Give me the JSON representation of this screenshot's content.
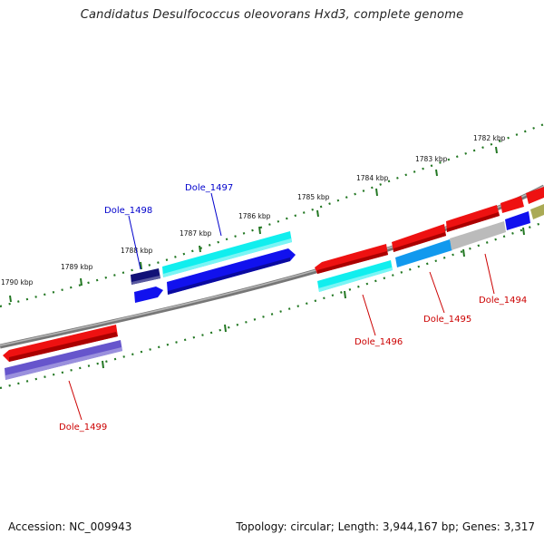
{
  "title": "Candidatus Desulfococcus oleovorans Hxd3, complete genome",
  "accession": "Accession: NC_009943",
  "summary": "Topology: circular; Length: 3,944,167 bp; Genes: 3,317",
  "colors": {
    "forward_gene": "#ee1111",
    "blue_gene": "#1111ee",
    "cyan_gene": "#11eeee",
    "navy_gene": "#111177",
    "slate_gene": "#6655cc",
    "sky_gene": "#1199ee",
    "grey_gene": "#bbbbbb",
    "olive_gene": "#aaaa55",
    "backbone": "#888888",
    "tick": "#227722",
    "label_red": "#cc0000",
    "label_blue": "#0000cc"
  },
  "scale_labels": [
    "1790 kbp",
    "1789 kbp",
    "1788 kbp",
    "1787 kbp",
    "1786 kbp",
    "1785 kbp",
    "1784 kbp",
    "1783 kbp",
    "1782 kbp"
  ],
  "gene_labels": [
    {
      "name": "Dole_1494",
      "color": "red"
    },
    {
      "name": "Dole_1495",
      "color": "red"
    },
    {
      "name": "Dole_1496",
      "color": "red"
    },
    {
      "name": "Dole_1497",
      "color": "blue"
    },
    {
      "name": "Dole_1498",
      "color": "blue"
    },
    {
      "name": "Dole_1499",
      "color": "red"
    }
  ]
}
